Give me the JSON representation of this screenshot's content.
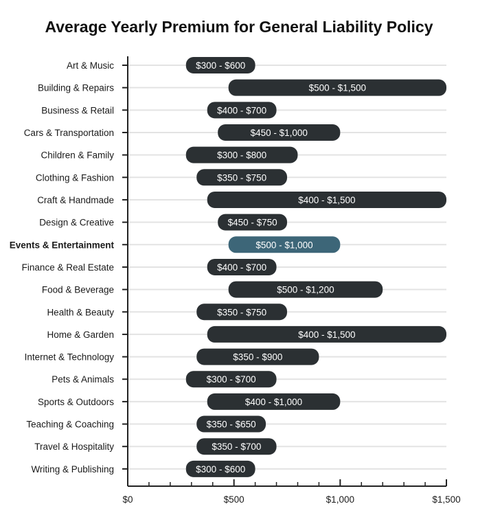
{
  "chart_data": {
    "type": "bar",
    "orientation": "horizontal-range",
    "title": "Average Yearly Premium for General Liability Policy",
    "xlim": [
      0,
      1500
    ],
    "xticks": [
      0,
      500,
      1000,
      1500
    ],
    "xtick_labels": [
      "$0",
      "$500",
      "$1,000",
      "$1,500"
    ],
    "grid": "horizontal row lines",
    "highlight_category": "Events & Entertainment",
    "colors": {
      "bar": "#2b3033",
      "highlight": "#3d6678",
      "grid": "#e3e3e3",
      "axis": "#222222"
    },
    "categories": [
      "Art & Music",
      "Building & Repairs",
      "Business & Retail",
      "Cars & Transportation",
      "Children & Family",
      "Clothing & Fashion",
      "Craft & Handmade",
      "Design & Creative",
      "Events & Entertainment",
      "Finance & Real Estate",
      "Food & Beverage",
      "Health & Beauty",
      "Home & Garden",
      "Internet & Technology",
      "Pets & Animals",
      "Sports & Outdoors",
      "Teaching & Coaching",
      "Travel & Hospitality",
      "Writing & Publishing"
    ],
    "ranges": [
      [
        300,
        600
      ],
      [
        500,
        1500
      ],
      [
        400,
        700
      ],
      [
        450,
        1000
      ],
      [
        300,
        800
      ],
      [
        350,
        750
      ],
      [
        400,
        1500
      ],
      [
        450,
        750
      ],
      [
        500,
        1000
      ],
      [
        400,
        700
      ],
      [
        500,
        1200
      ],
      [
        350,
        750
      ],
      [
        400,
        1500
      ],
      [
        350,
        900
      ],
      [
        300,
        700
      ],
      [
        400,
        1000
      ],
      [
        350,
        650
      ],
      [
        350,
        700
      ],
      [
        300,
        600
      ]
    ],
    "labels": [
      "$300 - $600",
      "$500 - $1,500",
      "$400 - $700",
      "$450 - $1,000",
      "$300 - $800",
      "$350 - $750",
      "$400 - $1,500",
      "$450 - $750",
      "$500 - $1,000",
      "$400 - $700",
      "$500 - $1,200",
      "$350 - $750",
      "$400 - $1,500",
      "$350 - $900",
      "$300 - $700",
      "$400 - $1,000",
      "$350 - $650",
      "$350 - $700",
      "$300 - $600"
    ]
  }
}
